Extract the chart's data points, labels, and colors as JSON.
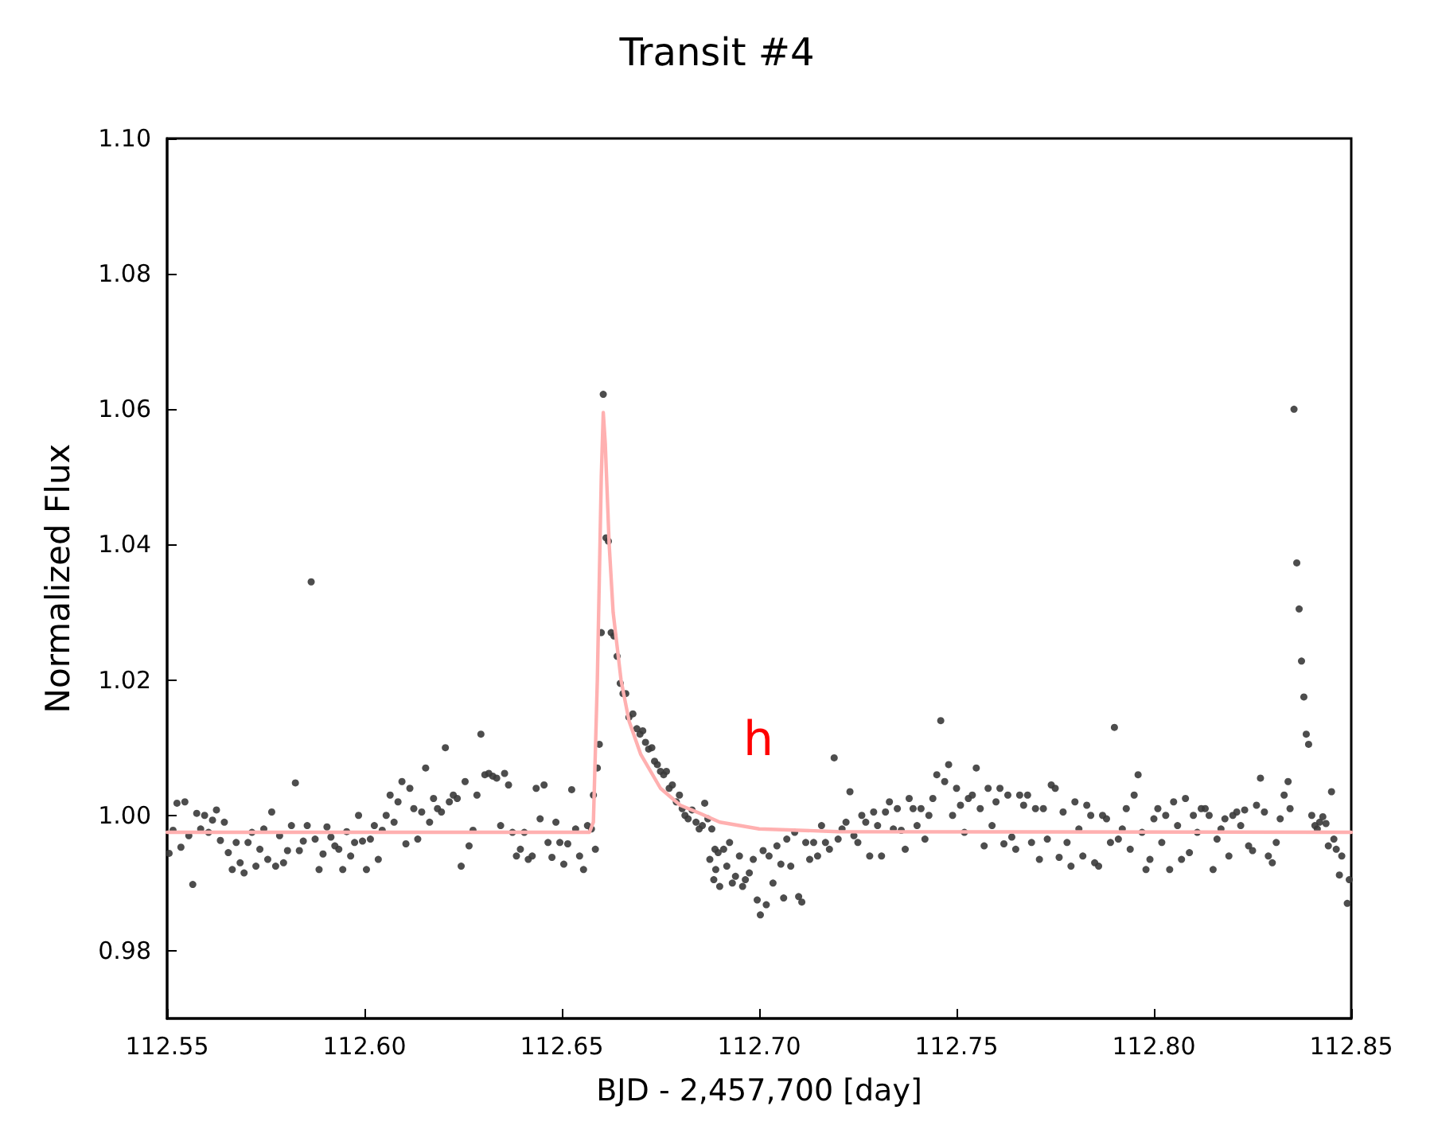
{
  "chart_data": {
    "type": "scatter",
    "title": "Transit #4",
    "xlabel": "BJD - 2,457,700 [day]",
    "ylabel": "Normalized Flux",
    "xlim": [
      112.55,
      112.85
    ],
    "ylim": [
      0.97,
      1.1
    ],
    "xticks": [
      112.55,
      {
        "value": 112.6,
        "label": "112.60"
      },
      112.65,
      {
        "value": 112.7,
        "label": "112.70"
      },
      112.75,
      {
        "value": 112.8,
        "label": "112.80"
      },
      112.85
    ],
    "yticks": [
      0.98,
      {
        "value": 1.0,
        "label": "1.00"
      },
      1.02,
      1.04,
      1.06,
      1.08,
      {
        "value": 1.1,
        "label": "1.10"
      }
    ],
    "grid": false,
    "marker": "circle",
    "annotations": [
      "h"
    ],
    "series": [
      {
        "color": "#3a3a3a",
        "x": [
          112.5505,
          112.5515,
          112.5525,
          112.5535,
          112.5545,
          112.5555,
          112.5565,
          112.5575,
          112.5585,
          112.5595,
          112.5605,
          112.5615,
          112.5625,
          112.5635,
          112.5645,
          112.5655,
          112.5665,
          112.5675,
          112.5685,
          112.5695,
          112.5705,
          112.5715,
          112.5725,
          112.5735,
          112.5745,
          112.5755,
          112.5765,
          112.5775,
          112.5785,
          112.5795,
          112.5805,
          112.5815,
          112.5825,
          112.5835,
          112.5845,
          112.5855,
          112.5865,
          112.5875,
          112.5885,
          112.5895,
          112.5905,
          112.5915,
          112.5925,
          112.5935,
          112.5945,
          112.5955,
          112.5965,
          112.5975,
          112.5985,
          112.5995,
          112.6005,
          112.6015,
          112.6025,
          112.6035,
          112.6045,
          112.6055,
          112.6065,
          112.6075,
          112.6085,
          112.6095,
          112.6105,
          112.6115,
          112.6125,
          112.6135,
          112.6145,
          112.6155,
          112.6165,
          112.6175,
          112.6185,
          112.6195,
          112.6205,
          112.6215,
          112.6225,
          112.6235,
          112.6245,
          112.6255,
          112.6265,
          112.6275,
          112.6285,
          112.6295,
          112.6305,
          112.6315,
          112.6325,
          112.6335,
          112.6345,
          112.6355,
          112.6365,
          112.6375,
          112.6385,
          112.6395,
          112.6405,
          112.6415,
          112.6425,
          112.6435,
          112.6445,
          112.6455,
          112.6465,
          112.6475,
          112.6485,
          112.6495,
          112.6505,
          112.6515,
          112.6525,
          112.6535,
          112.6545,
          112.6555,
          112.6565,
          112.6575,
          112.658,
          112.6585,
          112.659,
          112.6595,
          112.66,
          112.6605,
          112.6612,
          112.6618,
          112.6625,
          112.6632,
          112.664,
          112.6648,
          112.6655,
          112.6662,
          112.667,
          112.668,
          112.669,
          112.6698,
          112.6705,
          112.6712,
          112.672,
          112.6728,
          112.6735,
          112.6742,
          112.675,
          112.6758,
          112.6765,
          112.6772,
          112.678,
          112.679,
          112.6798,
          112.6805,
          112.6812,
          112.682,
          112.683,
          112.684,
          112.6848,
          112.6856,
          112.6862,
          112.687,
          112.6875,
          112.688,
          112.6885,
          112.6888,
          112.689,
          112.6896,
          112.69,
          112.691,
          112.6918,
          112.6925,
          112.6932,
          112.694,
          112.695,
          112.6958,
          112.6965,
          112.6975,
          112.6985,
          112.6995,
          112.7003,
          112.701,
          112.7018,
          112.7025,
          112.7035,
          112.7045,
          112.7055,
          112.7062,
          112.707,
          112.708,
          112.709,
          112.71,
          112.7108,
          112.7118,
          112.7128,
          112.7138,
          112.7148,
          112.7158,
          112.7168,
          112.7178,
          112.719,
          112.72,
          112.721,
          112.722,
          112.723,
          112.724,
          112.725,
          112.726,
          112.727,
          112.728,
          112.729,
          112.73,
          112.731,
          112.732,
          112.733,
          112.734,
          112.735,
          112.736,
          112.737,
          112.738,
          112.739,
          112.74,
          112.741,
          112.742,
          112.743,
          112.744,
          112.745,
          112.746,
          112.747,
          112.748,
          112.749,
          112.75,
          112.751,
          112.752,
          112.753,
          112.754,
          112.755,
          112.756,
          112.757,
          112.758,
          112.759,
          112.76,
          112.761,
          112.762,
          112.763,
          112.764,
          112.765,
          112.766,
          112.767,
          112.768,
          112.769,
          112.77,
          112.771,
          112.772,
          112.773,
          112.774,
          112.775,
          112.776,
          112.777,
          112.778,
          112.779,
          112.78,
          112.781,
          112.782,
          112.783,
          112.784,
          112.785,
          112.786,
          112.787,
          112.788,
          112.789,
          112.79,
          112.791,
          112.792,
          112.793,
          112.794,
          112.795,
          112.796,
          112.797,
          112.798,
          112.799,
          112.8,
          112.801,
          112.802,
          112.803,
          112.804,
          112.805,
          112.806,
          112.807,
          112.808,
          112.809,
          112.81,
          112.811,
          112.812,
          112.813,
          112.814,
          112.815,
          112.816,
          112.817,
          112.818,
          112.819,
          112.82,
          112.821,
          112.822,
          112.823,
          112.824,
          112.825,
          112.826,
          112.827,
          112.828,
          112.829,
          112.83,
          112.831,
          112.832,
          112.833,
          112.834,
          112.8345,
          112.8355,
          112.8362,
          112.8368,
          112.8374,
          112.838,
          112.8386,
          112.8392,
          112.84,
          112.8408,
          112.8414,
          112.842,
          112.8428,
          112.8436,
          112.8442,
          112.845,
          112.8456,
          112.8462,
          112.847,
          112.8476,
          112.849,
          112.8495
        ],
        "values": [
          0.9944,
          0.9978,
          1.0018,
          0.9953,
          1.002,
          0.997,
          0.9898,
          1.0003,
          0.998,
          1.0,
          0.9975,
          0.9993,
          1.0008,
          0.9963,
          0.999,
          0.9945,
          0.992,
          0.996,
          0.993,
          0.9915,
          0.996,
          0.9975,
          0.9925,
          0.995,
          0.998,
          0.9935,
          1.0005,
          0.9925,
          0.997,
          0.993,
          0.9948,
          0.9985,
          1.0048,
          0.9948,
          0.9962,
          0.9985,
          1.0345,
          0.9965,
          0.992,
          0.9943,
          0.9983,
          0.9968,
          0.9955,
          0.995,
          0.992,
          0.9976,
          0.994,
          0.996,
          1.0,
          0.9962,
          0.992,
          0.9965,
          0.9985,
          0.9935,
          0.9978,
          1.0,
          1.003,
          0.999,
          1.002,
          1.005,
          0.9958,
          1.004,
          1.001,
          0.9965,
          1.0005,
          1.007,
          0.999,
          1.0025,
          1.001,
          1.0005,
          1.01,
          1.002,
          1.003,
          1.0025,
          0.9925,
          1.005,
          0.9955,
          0.9978,
          1.003,
          1.012,
          1.006,
          1.0062,
          1.0058,
          1.0055,
          0.9985,
          1.0062,
          1.0045,
          0.9975,
          0.994,
          0.995,
          0.9975,
          0.9935,
          0.994,
          1.004,
          0.9995,
          1.0045,
          0.996,
          0.9938,
          0.999,
          0.996,
          0.9928,
          0.9958,
          1.0038,
          0.998,
          0.994,
          0.992,
          0.9985,
          0.998,
          1.003,
          0.995,
          1.007,
          1.0105,
          1.027,
          1.0622,
          1.041,
          1.0405,
          1.027,
          1.0265,
          1.0235,
          1.0195,
          1.018,
          1.018,
          1.0145,
          1.015,
          1.0128,
          1.012,
          1.0125,
          1.0108,
          1.0098,
          1.01,
          1.008,
          1.0075,
          1.0065,
          1.006,
          1.0065,
          1.004,
          1.0045,
          1.002,
          1.003,
          1.001,
          1.0,
          0.9995,
          1.0008,
          0.999,
          0.998,
          0.9985,
          1.0018,
          0.9995,
          0.9935,
          0.998,
          0.9905,
          0.995,
          0.992,
          0.9945,
          0.9895,
          0.995,
          0.9925,
          0.996,
          0.99,
          0.991,
          0.994,
          0.9895,
          0.9905,
          0.9915,
          0.9935,
          0.9875,
          0.9853,
          0.9948,
          0.9868,
          0.994,
          0.99,
          0.9955,
          0.9928,
          0.9878,
          0.9965,
          0.9925,
          0.9975,
          0.988,
          0.9872,
          0.996,
          0.9935,
          0.996,
          0.994,
          0.9985,
          0.996,
          0.995,
          1.0085,
          0.9965,
          0.998,
          0.999,
          1.0035,
          0.997,
          0.996,
          1.0,
          0.999,
          0.994,
          1.0005,
          0.9985,
          0.994,
          1.0005,
          1.002,
          0.998,
          1.001,
          0.9978,
          0.995,
          1.0025,
          1.001,
          0.9985,
          1.001,
          0.9965,
          1.0,
          1.0025,
          1.006,
          1.014,
          1.005,
          1.0075,
          1.0,
          1.004,
          1.0015,
          0.9975,
          1.0025,
          1.003,
          1.007,
          1.001,
          0.9955,
          1.004,
          0.9985,
          1.002,
          1.004,
          0.9958,
          1.003,
          0.9968,
          0.995,
          1.003,
          1.0015,
          1.003,
          0.996,
          1.001,
          0.9935,
          1.001,
          0.9965,
          1.0045,
          1.004,
          0.9938,
          1.0005,
          0.996,
          0.9925,
          1.002,
          0.998,
          0.994,
          1.0015,
          1.0,
          0.993,
          0.9925,
          1.0,
          0.9995,
          0.996,
          1.013,
          0.9965,
          0.998,
          1.001,
          0.995,
          1.003,
          1.006,
          0.9975,
          0.992,
          0.9935,
          0.9995,
          1.001,
          0.996,
          1.0,
          0.992,
          1.002,
          0.9985,
          0.9935,
          1.0025,
          0.9945,
          1.0,
          0.9975,
          1.001,
          1.001,
          1.0,
          0.992,
          0.9965,
          0.998,
          0.9995,
          0.994,
          1.0,
          1.0005,
          0.9985,
          1.0008,
          0.9955,
          0.9948,
          1.0015,
          1.0055,
          1.0005,
          0.994,
          0.993,
          0.996,
          0.9995,
          1.003,
          1.005,
          1.001,
          1.06,
          1.0373,
          1.0305,
          1.0228,
          1.0175,
          1.012,
          1.0105,
          1.0,
          0.9985,
          0.998,
          0.999,
          0.9998,
          0.9988,
          0.9955,
          1.0035,
          0.9965,
          0.995,
          0.9912,
          0.994,
          0.987,
          0.9905
        ]
      },
      {
        "type": "line",
        "color": "#ffb0b0",
        "line_style": "solid",
        "marker": "none",
        "x": [
          112.55,
          112.657,
          112.658,
          112.659,
          112.66,
          112.6605,
          112.661,
          112.662,
          112.663,
          112.665,
          112.667,
          112.67,
          112.675,
          112.68,
          112.685,
          112.69,
          112.7,
          112.72,
          112.85
        ],
        "values": [
          0.9975,
          0.9975,
          0.999,
          1.02,
          1.05,
          1.0595,
          1.055,
          1.04,
          1.03,
          1.02,
          1.014,
          1.009,
          1.004,
          1.0015,
          1.0003,
          0.999,
          0.998,
          0.9976,
          0.9975
        ]
      }
    ]
  }
}
